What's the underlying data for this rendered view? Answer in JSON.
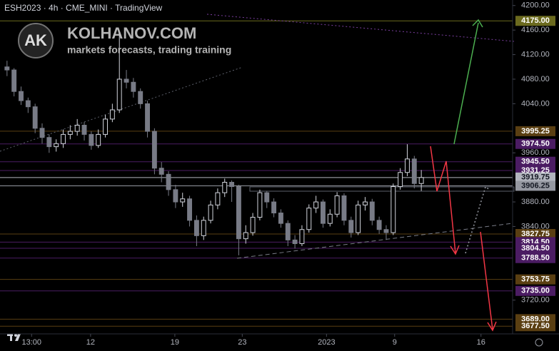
{
  "chart_data": {
    "type": "candlestick",
    "title": "ESH2023 · 4h · CME_MINI · TradingView",
    "brand": {
      "badge": "AK",
      "name": "KOLHANOV.COM",
      "tagline": "markets forecasts, trading training"
    },
    "up_color": "#d1d4dc",
    "down_color": "#787b86",
    "xlim": [
      -1,
      72
    ],
    "ylim": [
      3665,
      4209
    ],
    "xticks": [
      {
        "value": 3.5,
        "label": "13:00"
      },
      {
        "value": 11.9,
        "label": "12"
      },
      {
        "value": 23.9,
        "label": "19"
      },
      {
        "value": 33.5,
        "label": "23"
      },
      {
        "value": 45.5,
        "label": "2023"
      },
      {
        "value": 55.2,
        "label": "9"
      },
      {
        "value": 67.5,
        "label": "16"
      }
    ],
    "yticks": [
      {
        "value": 4200,
        "label": "4200.00"
      },
      {
        "value": 4160,
        "label": "4160.00"
      },
      {
        "value": 4120,
        "label": "4120.00"
      },
      {
        "value": 4080,
        "label": "4080.00"
      },
      {
        "value": 4040,
        "label": "4040.00"
      },
      {
        "value": 3960,
        "label": "3960.00"
      },
      {
        "value": 3880,
        "label": "3880.00"
      },
      {
        "value": 3840,
        "label": "3840.00"
      },
      {
        "value": 3720,
        "label": "3720.00"
      }
    ],
    "open": [
      4100,
      4095,
      4060,
      4045,
      4035,
      4000,
      3985,
      3970,
      3975,
      3990,
      3995,
      4005,
      3990,
      3972,
      3990,
      4015,
      4030,
      4080,
      4075,
      4060,
      4040,
      3995,
      3935,
      3925,
      3900,
      3880,
      3885,
      3850,
      3825,
      3850,
      3875,
      3895,
      3912,
      3905,
      3820,
      3830,
      3855,
      3895,
      3880,
      3862,
      3845,
      3818,
      3812,
      3835,
      3870,
      3880,
      3845,
      3860,
      3890,
      3850,
      3830,
      3875,
      3880,
      3850,
      3835,
      3830,
      3905,
      3928,
      3950,
      3910
    ],
    "high": [
      4110,
      4098,
      4068,
      4050,
      4040,
      4008,
      3990,
      3982,
      3998,
      4005,
      4015,
      4010,
      3995,
      3998,
      4022,
      4040,
      4155,
      4095,
      4082,
      4065,
      4045,
      4000,
      3945,
      3930,
      3908,
      3895,
      3890,
      3858,
      3856,
      3882,
      3902,
      3918,
      3915,
      3908,
      3842,
      3862,
      3900,
      3898,
      3886,
      3868,
      3850,
      3826,
      3842,
      3876,
      3890,
      3884,
      3868,
      3896,
      3894,
      3856,
      3882,
      3888,
      3885,
      3856,
      3842,
      3910,
      3935,
      3974,
      3955,
      3932
    ],
    "low": [
      4085,
      4052,
      4038,
      4025,
      3992,
      3975,
      3960,
      3962,
      3968,
      3982,
      3988,
      3980,
      3965,
      3968,
      3985,
      4010,
      4025,
      4065,
      4050,
      4032,
      3985,
      3925,
      3912,
      3890,
      3870,
      3872,
      3840,
      3808,
      3818,
      3845,
      3868,
      3888,
      3880,
      3793,
      3812,
      3825,
      3850,
      3870,
      3855,
      3838,
      3808,
      3804,
      3808,
      3830,
      3862,
      3838,
      3840,
      3855,
      3842,
      3822,
      3826,
      3866,
      3842,
      3828,
      3818,
      3826,
      3900,
      3922,
      3902,
      3898
    ],
    "close": [
      4095,
      4060,
      4045,
      4035,
      4000,
      3985,
      3970,
      3975,
      3990,
      3995,
      4005,
      3990,
      3972,
      3990,
      4015,
      4030,
      4080,
      4075,
      4060,
      4040,
      3995,
      3935,
      3925,
      3900,
      3880,
      3885,
      3850,
      3825,
      3850,
      3875,
      3895,
      3912,
      3905,
      3820,
      3830,
      3855,
      3895,
      3880,
      3862,
      3845,
      3818,
      3812,
      3835,
      3870,
      3880,
      3845,
      3860,
      3890,
      3850,
      3830,
      3875,
      3880,
      3850,
      3835,
      3830,
      3905,
      3928,
      3950,
      3910,
      3919.75
    ],
    "levels": [
      {
        "value": 4175,
        "label": "4175.00",
        "color": "#6b6a1e"
      },
      {
        "value": 3995.25,
        "label": "3995.25",
        "color": "#5a3f12"
      },
      {
        "value": 3974.5,
        "label": "3974.50",
        "color": "#4b1c63"
      },
      {
        "value": 3945.5,
        "label": "3945.50",
        "color": "#4b1c63"
      },
      {
        "value": 3931.25,
        "label": "3931.25",
        "color": "#4b1c63"
      },
      {
        "value": 3919.75,
        "label": "3919.75",
        "color": "#b2b5be",
        "text_color": "#131722"
      },
      {
        "value": 3906.25,
        "label": "3906.25",
        "color": "#9598a1",
        "text_color": "#131722"
      },
      {
        "value": 3827.75,
        "label": "3827.75",
        "color": "#5a3f12"
      },
      {
        "value": 3814.5,
        "label": "3814.50",
        "color": "#4b1c63"
      },
      {
        "value": 3804.5,
        "label": "3804.50",
        "color": "#4b1c63"
      },
      {
        "value": 3788.5,
        "label": "3788.50",
        "color": "#4b1c63"
      },
      {
        "value": 3753.75,
        "label": "3753.75",
        "color": "#5a3f12"
      },
      {
        "value": 3735,
        "label": "3735.00",
        "color": "#4b1c63"
      },
      {
        "value": 3689,
        "label": "3689.00",
        "color": "#5a3f12"
      },
      {
        "value": 3677.5,
        "label": "3677.50",
        "color": "#5a3f12"
      }
    ]
  }
}
